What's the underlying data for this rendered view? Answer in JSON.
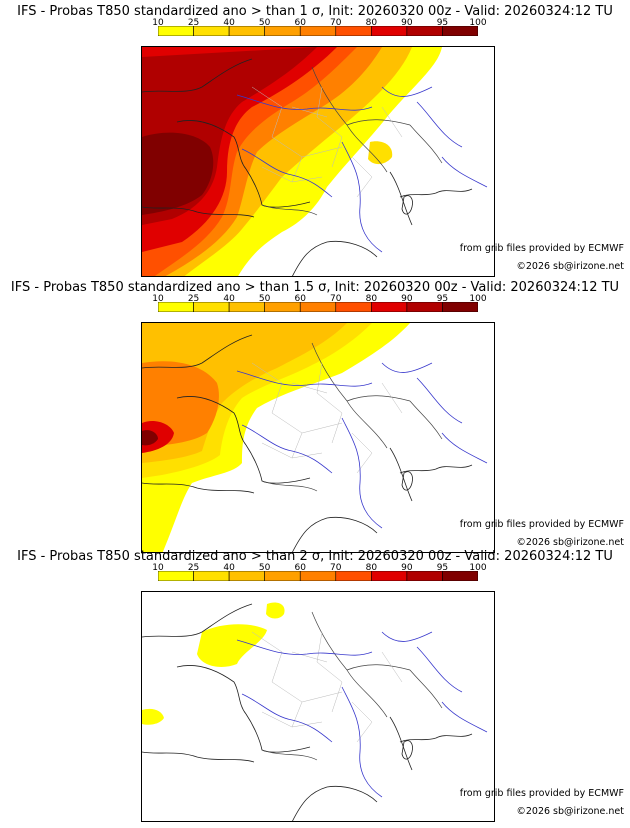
{
  "colorbar": {
    "labels": [
      "10",
      "25",
      "40",
      "50",
      "60",
      "70",
      "80",
      "90",
      "95",
      "100"
    ],
    "colors": [
      "#ffff00",
      "#ffe000",
      "#ffc000",
      "#ffa000",
      "#ff8000",
      "#ff5000",
      "#e00000",
      "#b00000",
      "#800000"
    ]
  },
  "panels": [
    {
      "title": "IFS - Probas T850  standardized ano > than 1 σ, Init: 20260320 00z - Valid: 20260324:12 TU",
      "credit_grib": "from grib files provided by ECMWF",
      "credit_copy": "©2026 sb@irizone.net",
      "threshold_sigma": 1
    },
    {
      "title": "IFS - Probas T850  standardized ano > than 1.5 σ, Init: 20260320 00z - Valid: 20260324:12 TU",
      "credit_grib": "from grib files provided by ECMWF",
      "credit_copy": "©2026 sb@irizone.net",
      "threshold_sigma": 1.5
    },
    {
      "title": "IFS - Probas T850  standardized ano > than 2 σ, Init: 20260320 00z - Valid: 20260324:12 TU",
      "credit_grib": "from grib files provided by ECMWF",
      "credit_copy": "©2026 sb@irizone.net",
      "threshold_sigma": 2
    }
  ]
}
